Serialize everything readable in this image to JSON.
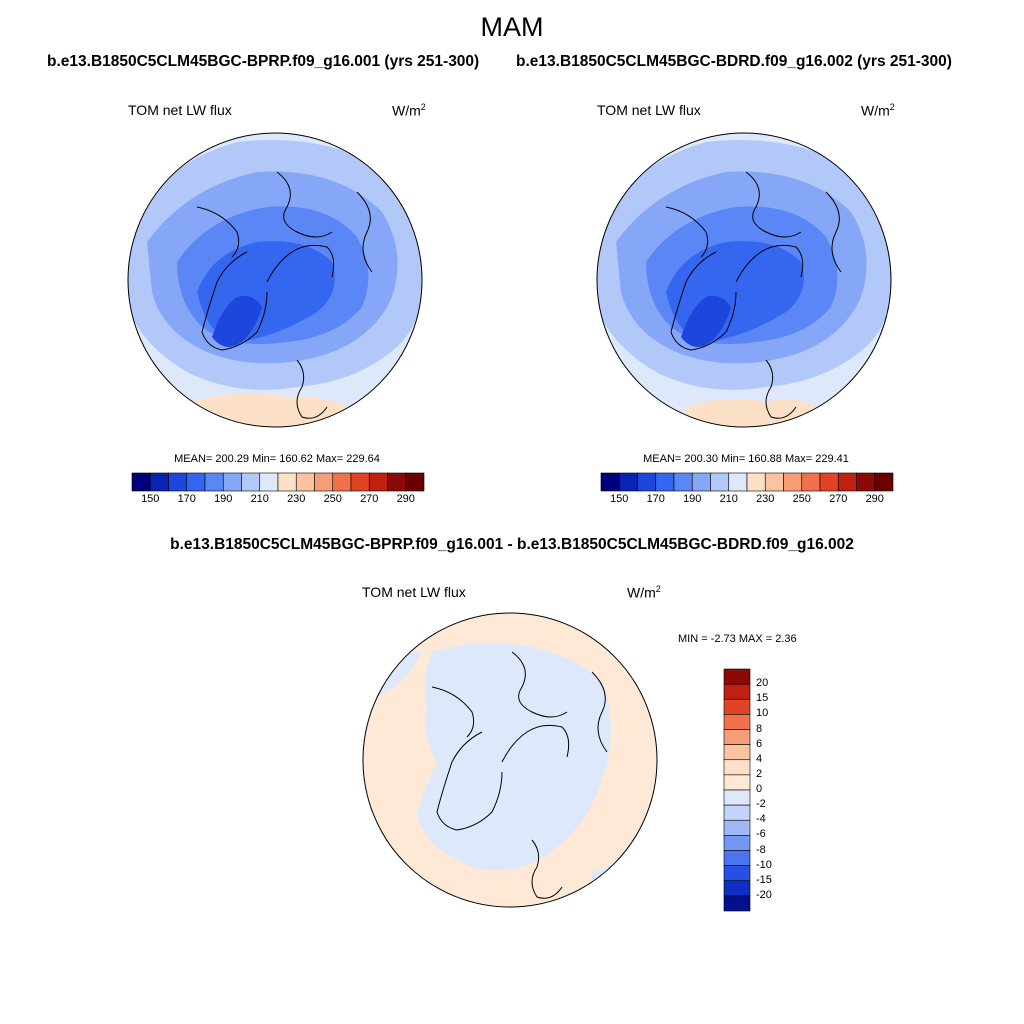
{
  "figure": {
    "season": "MAM",
    "variable": "TOM net LW flux",
    "unit_base": "W/m",
    "unit_exp": "2"
  },
  "panels": [
    {
      "case_title": "b.e13.B1850C5CLM45BGC-BPRP.f09_g16.001 (yrs 251-300)",
      "stats": {
        "mean": "200.29",
        "min": "160.62",
        "max": "229.64"
      },
      "stats_text": "MEAN= 200.29  Min= 160.62  Max= 229.64"
    },
    {
      "case_title": "b.e13.B1850C5CLM45BGC-BDRD.f09_g16.002 (yrs 251-300)",
      "stats": {
        "mean": "200.30",
        "min": "160.88",
        "max": "229.41"
      },
      "stats_text": "MEAN= 200.30  Min= 160.88  Max= 229.41"
    }
  ],
  "diff_panel": {
    "title": "b.e13.B1850C5CLM45BGC-BPRP.f09_g16.001 - b.e13.B1850C5CLM45BGC-BDRD.f09_g16.002",
    "min_max_text": "MIN =  -2.73 MAX =   2.36",
    "min": -2.73,
    "max": 2.36
  },
  "colorbar_abs": {
    "levels": [
      150,
      160,
      170,
      180,
      190,
      200,
      210,
      220,
      230,
      240,
      250,
      260,
      270,
      280,
      290
    ],
    "tick_labels": [
      "150",
      "170",
      "190",
      "210",
      "230",
      "250",
      "270",
      "290"
    ],
    "colors": [
      "#00007a",
      "#0a23b5",
      "#1c46dc",
      "#3466f0",
      "#5b86f5",
      "#86a7f7",
      "#b2c8f8",
      "#dde8fb",
      "#fde0c8",
      "#fbc3a0",
      "#f79e78",
      "#f0714c",
      "#e04425",
      "#bf2010",
      "#8c0a05",
      "#6a0000"
    ]
  },
  "colorbar_diff": {
    "levels": [
      -20,
      -15,
      -10,
      -8,
      -6,
      -4,
      -2,
      0,
      2,
      4,
      6,
      8,
      10,
      15,
      20
    ],
    "tick_labels": [
      "20",
      "15",
      "10",
      "8",
      "6",
      "4",
      "2",
      "0",
      "-2",
      "-4",
      "-6",
      "-8",
      "-10",
      "-15",
      "-20"
    ],
    "colors_top_to_bottom": [
      "#8c0a05",
      "#bf2010",
      "#e04425",
      "#f0714c",
      "#f79e78",
      "#fbc3a0",
      "#fde0c8",
      "#fde9d6",
      "#dde8fb",
      "#c3d4f8",
      "#9fb9f6",
      "#7398f2",
      "#4c74ee",
      "#2550e3",
      "#0f2fc4",
      "#00108e"
    ]
  },
  "colors": {
    "background": "#ffffff",
    "coastline": "#000000",
    "circle_border": "#000000"
  }
}
